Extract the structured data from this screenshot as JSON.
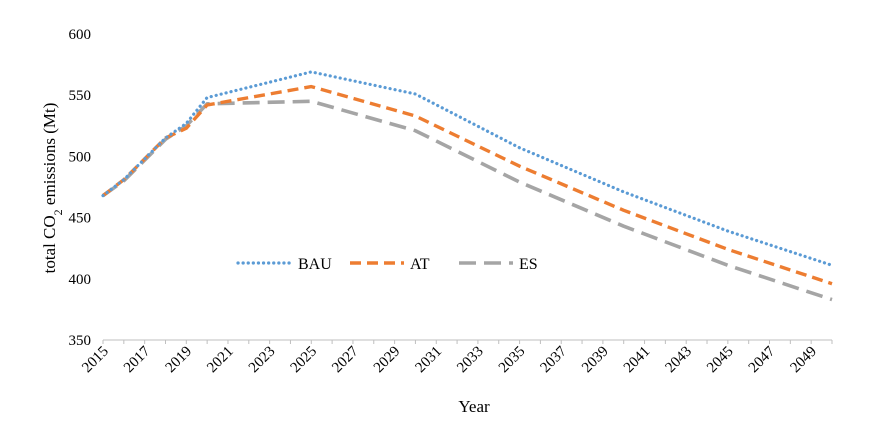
{
  "chart_data": {
    "type": "line",
    "title": "",
    "xlabel": "Year",
    "ylabel": {
      "prefix": "total CO",
      "subscript": "2",
      "suffix": " emissions (Mt)"
    },
    "ylim": [
      350,
      600
    ],
    "yticks": [
      350,
      400,
      450,
      500,
      550,
      600
    ],
    "xlim": [
      2015,
      2050
    ],
    "xticks": [
      2015,
      2017,
      2019,
      2021,
      2023,
      2025,
      2027,
      2029,
      2031,
      2033,
      2035,
      2037,
      2039,
      2041,
      2043,
      2045,
      2047,
      2049
    ],
    "grid": false,
    "legend_position": "center-left inside plot",
    "series": [
      {
        "name": "BAU",
        "color": "#5B9BD5",
        "style": "dotted",
        "x": [
          2015,
          2016,
          2017,
          2018,
          2019,
          2020,
          2025,
          2030,
          2035,
          2040,
          2045,
          2050
        ],
        "values": [
          468,
          481,
          498,
          515,
          527,
          548,
          569,
          551,
          507,
          471,
          439,
          411
        ]
      },
      {
        "name": "AT",
        "color": "#ED7D31",
        "style": "dashed",
        "x": [
          2015,
          2016,
          2017,
          2018,
          2019,
          2020,
          2025,
          2030,
          2035,
          2040,
          2045,
          2050
        ],
        "values": [
          468,
          481,
          498,
          515,
          523,
          542,
          557,
          533,
          492,
          456,
          424,
          396
        ]
      },
      {
        "name": "ES",
        "color": "#A5A5A5",
        "style": "long-dash",
        "x": [
          2015,
          2016,
          2017,
          2018,
          2019,
          2020,
          2025,
          2030,
          2035,
          2040,
          2045,
          2050
        ],
        "values": [
          468,
          480,
          497,
          514,
          525,
          543,
          545,
          521,
          479,
          443,
          411,
          383
        ]
      }
    ]
  }
}
